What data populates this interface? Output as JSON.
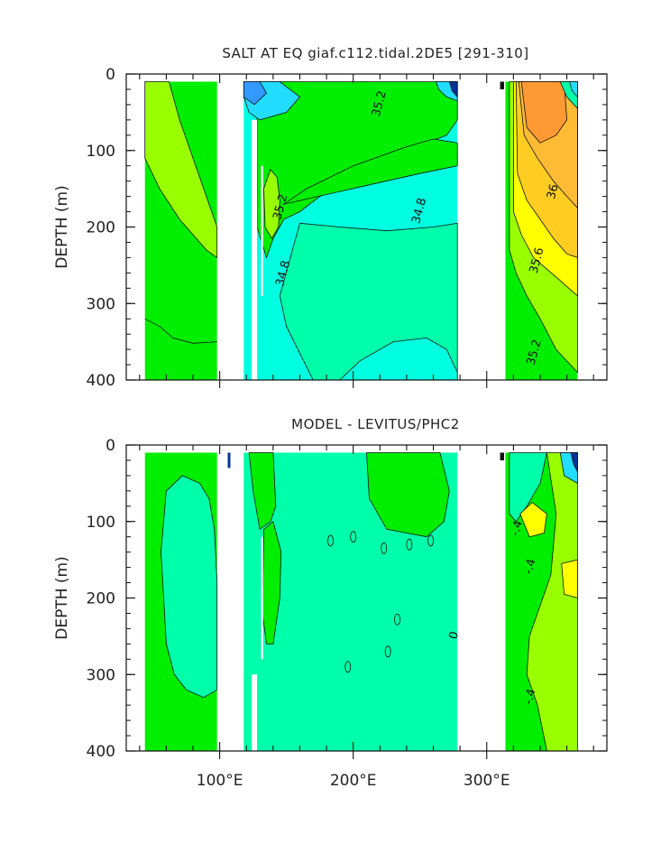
{
  "chart_data": [
    {
      "type": "contour",
      "title": "SALT AT EQ giaf.c112.tidal.2DE5 [291-310]",
      "ylabel": "DEPTH (m)",
      "xlabel": "",
      "ylim": [
        400,
        0
      ],
      "yticks": [
        "0",
        "100",
        "200",
        "300",
        "400"
      ],
      "xlim": [
        30,
        390
      ],
      "xticks": [],
      "colors": {
        "light_green": "#99ff00",
        "green": "#00ee00",
        "aqua_green": "#00ffaa",
        "cyan": "#00ffe0",
        "sky": "#22ddff",
        "blue": "#3399ff",
        "navy": "#003399",
        "orange": "#ff9933",
        "light_orange": "#ffbb33",
        "gold": "#ffcc22",
        "yellow": "#ffff00"
      },
      "contour_labels": [
        {
          "text": "35.2",
          "x": 222,
          "y": 40
        },
        {
          "text": "35.2",
          "x": 148,
          "y": 175
        },
        {
          "text": "34.8",
          "x": 252,
          "y": 180
        },
        {
          "text": "34.8",
          "x": 150,
          "y": 262
        },
        {
          "text": "36",
          "x": 352,
          "y": 155
        },
        {
          "text": "35.6",
          "x": 340,
          "y": 245
        },
        {
          "text": "35.2",
          "x": 338,
          "y": 365
        }
      ]
    },
    {
      "type": "contour",
      "title": "MODEL - LEVITUS/PHC2",
      "ylabel": "DEPTH (m)",
      "xlabel": "",
      "ylim": [
        400,
        0
      ],
      "yticks": [
        "0",
        "100",
        "200",
        "300",
        "400"
      ],
      "xlim": [
        30,
        390
      ],
      "xticks": [
        "100°E",
        "200°E",
        "300°E"
      ],
      "contour_labels": [
        {
          "text": "0",
          "x": 278,
          "y": 250
        },
        {
          "text": "-.4",
          "x": 325,
          "y": 110
        },
        {
          "text": "-.4",
          "x": 335,
          "y": 160
        },
        {
          "text": "-.4",
          "x": 335,
          "y": 330
        }
      ]
    }
  ]
}
